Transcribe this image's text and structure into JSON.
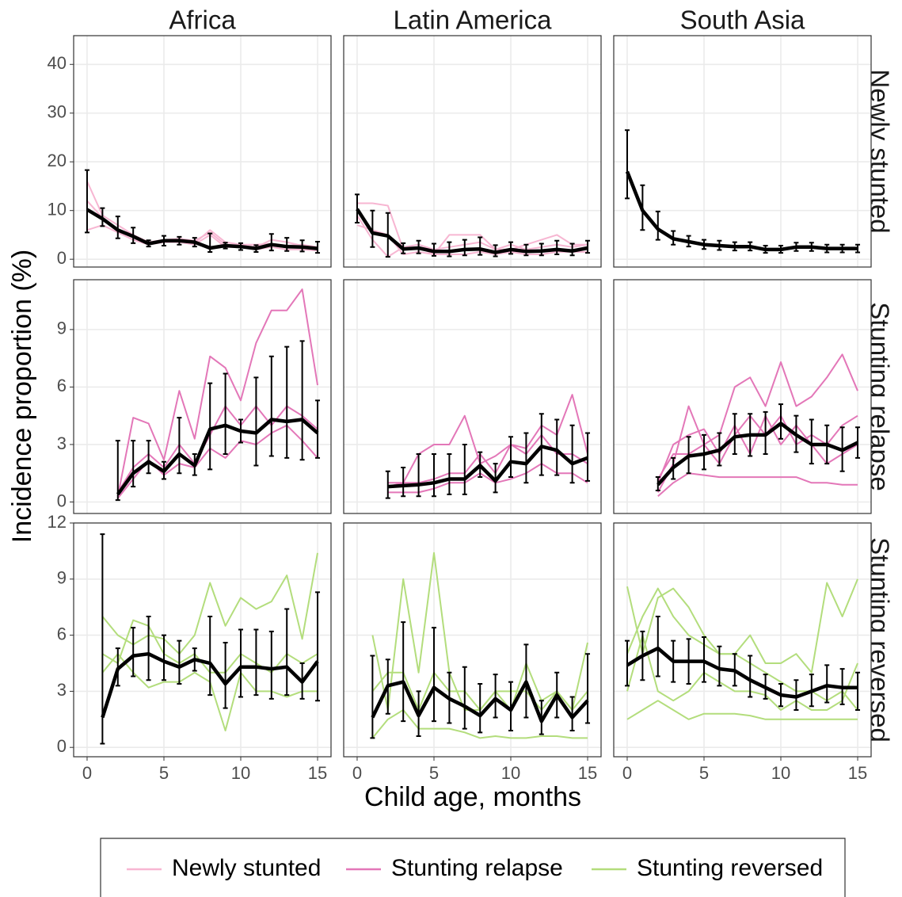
{
  "chart_data": {
    "type": "line",
    "y_label": "Incidence proportion (%)",
    "x_label": "Child age, months",
    "columns": [
      "Africa",
      "Latin America",
      "South Asia"
    ],
    "rows": [
      {
        "label": "Newly stunted",
        "ylim": [
          -1.6,
          45.9
        ],
        "yticks": [
          0,
          10,
          20,
          30,
          40
        ]
      },
      {
        "label": "Stunting relapse",
        "ylim": [
          -0.6,
          11.6
        ],
        "yticks": [
          0,
          3,
          6,
          9
        ]
      },
      {
        "label": "Stunting reversed",
        "ylim": [
          -0.5,
          12
        ],
        "yticks": [
          0,
          3,
          6,
          9,
          12
        ]
      }
    ],
    "xlim": [
      -0.875,
      15.875
    ],
    "xticks": [
      0,
      5,
      10,
      15
    ],
    "grid": true,
    "legend": "bottom",
    "pooled_color": "#000000",
    "series": [
      {
        "name": "Newly stunted",
        "color": "#f7b6d2"
      },
      {
        "name": "Stunting relapse",
        "color": "#e377b8"
      },
      {
        "name": "Stunting reversed",
        "color": "#b3dd7c"
      }
    ],
    "panels": [
      [
        {
          "x": [
            0,
            1,
            2,
            3,
            4,
            5,
            6,
            7,
            8,
            9,
            10,
            11,
            12,
            13,
            14,
            15
          ],
          "values": [
            10.2,
            8.3,
            6,
            4.7,
            3.2,
            3.8,
            3.8,
            3.5,
            2.3,
            2.8,
            2.6,
            2.2,
            3,
            2.6,
            2.5,
            2.2
          ],
          "lower": [
            5.5,
            6.8,
            4.3,
            3.3,
            2.6,
            2.8,
            3,
            2.6,
            1.5,
            2.2,
            1.9,
            1.5,
            1.8,
            1.7,
            1.6,
            1.3
          ],
          "upper": [
            18.3,
            10.5,
            8.8,
            6.5,
            3.9,
            4.8,
            4.6,
            4.4,
            5.3,
            3.4,
            3.3,
            2.9,
            5.2,
            4.4,
            3.9,
            3.6
          ],
          "cohorts": [
            [
              16,
              9,
              7,
              5,
              3.5,
              4,
              4.2,
              3.8,
              5.5,
              3,
              2.8,
              2.5,
              4,
              3.5,
              2.8,
              2.5
            ],
            [
              6,
              7,
              5.5,
              4,
              3,
              3.5,
              3.5,
              3,
              5,
              2.5,
              2.5,
              2,
              2.5,
              2,
              2,
              1.8
            ],
            [
              12,
              8.5,
              6,
              4.5,
              3.2,
              3.6,
              3.8,
              3.3,
              6,
              3.5,
              3,
              3,
              3.2,
              2.8,
              3,
              2.5
            ]
          ]
        },
        {
          "x": [
            0,
            1,
            2,
            3,
            4,
            5,
            6,
            7,
            8,
            9,
            10,
            11,
            12,
            13,
            14,
            15
          ],
          "values": [
            10.3,
            5.4,
            4.8,
            2.1,
            2.3,
            1.6,
            1.6,
            2,
            2.1,
            1.4,
            2,
            1.6,
            1.7,
            2,
            1.7,
            2.3
          ],
          "lower": [
            7.5,
            2.5,
            0.5,
            1.2,
            1.2,
            0.7,
            0.6,
            0.8,
            0.9,
            0.6,
            1.1,
            0.8,
            0.8,
            1,
            0.8,
            1.3
          ],
          "upper": [
            13.3,
            10,
            9.5,
            3.3,
            3.8,
            3.2,
            3.5,
            4,
            4.5,
            2.9,
            3.5,
            3,
            3.2,
            3.8,
            3.2,
            3.8
          ],
          "cohorts": [
            [
              11.5,
              11.5,
              11,
              2,
              2.5,
              1,
              5,
              5,
              5,
              2,
              2,
              3,
              4,
              5,
              3,
              3
            ],
            [
              7,
              6,
              5,
              1,
              1.5,
              1,
              1,
              1,
              1.5,
              1,
              1.5,
              1,
              1,
              1.5,
              1.5,
              1.5
            ],
            [
              9,
              4,
              0.5,
              2.5,
              3,
              2,
              2.5,
              3,
              3.5,
              2,
              3,
              2,
              2.5,
              3,
              2.5,
              3
            ]
          ]
        },
        {
          "x": [
            0,
            1,
            2,
            3,
            4,
            5,
            6,
            7,
            8,
            9,
            10,
            11,
            12,
            13,
            14,
            15
          ],
          "values": [
            18,
            10,
            6.2,
            4.2,
            3.6,
            3,
            2.8,
            2.6,
            2.6,
            2,
            2,
            2.5,
            2.5,
            2.2,
            2.2,
            2.2
          ],
          "lower": [
            12.5,
            6,
            4,
            3,
            2.6,
            2.1,
            1.9,
            1.8,
            1.8,
            1.3,
            1.3,
            1.7,
            1.7,
            1.4,
            1.4,
            1.4
          ],
          "upper": [
            26.5,
            15.2,
            9.8,
            5.8,
            4.8,
            4,
            3.8,
            3.5,
            3.5,
            2.8,
            2.8,
            3.4,
            3.4,
            3,
            3,
            3
          ]
        },
        "cohortsSA"
      ],
      [
        {
          "x": [
            2,
            3,
            4,
            5,
            6,
            7,
            8,
            9,
            10,
            11,
            12,
            13,
            14,
            15
          ],
          "values": [
            0.4,
            1.5,
            2.1,
            1.6,
            2.5,
            1.9,
            3.8,
            4,
            3.7,
            3.6,
            4.3,
            4.2,
            4.3,
            3.6
          ],
          "lower": [
            0.1,
            0.8,
            1.5,
            1.2,
            1.5,
            1.4,
            1.7,
            2.5,
            3.1,
            1.9,
            2.4,
            2.3,
            2.2,
            2.3
          ],
          "upper": [
            3.2,
            3.2,
            3.2,
            2.1,
            4.4,
            2.5,
            6.2,
            6.7,
            4.3,
            6.5,
            7.6,
            8.1,
            8.4,
            5.3
          ],
          "cohorts": [
            [
              0.3,
              4.4,
              4.1,
              2.2,
              5.8,
              3.3,
              7.6,
              7,
              5.3,
              8.3,
              10,
              10,
              11.1,
              6.1
            ],
            [
              0.2,
              1.2,
              2.2,
              1.4,
              2,
              1.8,
              2.8,
              2.3,
              3.2,
              3,
              3.6,
              4,
              3.2,
              2.3
            ],
            [
              0.5,
              1.8,
              2.5,
              1.8,
              3,
              2,
              3.5,
              5,
              4,
              5,
              4,
              5,
              4.5,
              3.8
            ]
          ]
        },
        {
          "x": [
            2,
            3,
            4,
            5,
            6,
            7,
            8,
            9,
            10,
            11,
            12,
            13,
            14,
            15
          ],
          "values": [
            0.8,
            0.85,
            0.9,
            1,
            1.2,
            1.2,
            1.9,
            1.1,
            2.1,
            2,
            2.9,
            2.7,
            2,
            2.3
          ],
          "lower": [
            0.2,
            0.3,
            0.3,
            0.3,
            0.4,
            0.4,
            1.3,
            0.5,
            1.3,
            1,
            1.4,
            1.4,
            1,
            1.1
          ],
          "upper": [
            1.6,
            1.8,
            2.5,
            2.5,
            2.5,
            3,
            2.6,
            2,
            3.4,
            3.6,
            4.6,
            4.3,
            4,
            3.6
          ],
          "cohorts": [
            [
              0.8,
              1,
              2.5,
              3,
              3,
              4.5,
              2,
              2.4,
              3,
              2.8,
              4,
              3.5,
              5.6,
              2.5
            ],
            [
              0.5,
              0.5,
              0.5,
              0.7,
              1,
              1,
              1.5,
              1,
              1.2,
              1.5,
              2,
              1.5,
              1.5,
              1
            ],
            [
              1,
              1,
              1,
              1.2,
              1.5,
              1.5,
              2.5,
              1.5,
              3,
              2.5,
              3.5,
              2.5,
              2.5,
              2
            ]
          ]
        },
        {
          "x": [
            2,
            3,
            4,
            5,
            6,
            7,
            8,
            9,
            10,
            11,
            12,
            13,
            14,
            15
          ],
          "values": [
            0.9,
            1.8,
            2.4,
            2.5,
            2.7,
            3.4,
            3.5,
            3.5,
            4.1,
            3.5,
            3,
            3,
            2.7,
            3.1
          ],
          "lower": [
            0.6,
            1.2,
            1.5,
            1.7,
            1.9,
            2.5,
            2.4,
            2.5,
            3.3,
            2.6,
            2,
            2,
            1.6,
            2.3
          ],
          "upper": [
            1.3,
            2.3,
            3.4,
            3.5,
            3.6,
            4.6,
            4.6,
            4.7,
            5.1,
            4.5,
            4.3,
            4,
            3.9,
            3.9
          ],
          "cohorts": [
            [
              0.5,
              2,
              5,
              3,
              3.5,
              6,
              6.5,
              5,
              7.3,
              5,
              5.5,
              6.5,
              7.7,
              5.8
            ],
            [
              0.3,
              1,
              1.5,
              1.4,
              1.3,
              1.3,
              1.3,
              1.3,
              1.3,
              1.3,
              1,
              1,
              0.9,
              0.9
            ],
            [
              1,
              3,
              3.5,
              3.8,
              2.5,
              4,
              2.5,
              4.5,
              3,
              4,
              3,
              2,
              2.5,
              3
            ],
            [
              1.2,
              2.5,
              2.5,
              3,
              2,
              3.5,
              4.5,
              3.5,
              4.5,
              3,
              3.5,
              3,
              4,
              4.5
            ]
          ]
        }
      ],
      [
        {
          "x": [
            1,
            2,
            3,
            4,
            5,
            6,
            7,
            8,
            9,
            10,
            11,
            12,
            13,
            14,
            15
          ],
          "values": [
            1.6,
            4.2,
            4.9,
            5,
            4.6,
            4.3,
            4.7,
            4.5,
            3.4,
            4.3,
            4.3,
            4.2,
            4.3,
            3.5,
            4.6
          ],
          "lower": [
            0.2,
            3.3,
            3.8,
            3.6,
            3.6,
            3.4,
            4.1,
            2.8,
            2.1,
            2.7,
            2.8,
            2.6,
            2.8,
            2.6,
            2.5
          ],
          "upper": [
            11.4,
            5.3,
            6.4,
            7,
            6,
            5.7,
            5.3,
            7,
            5.6,
            6.3,
            6.3,
            6.2,
            7.4,
            4.5,
            8.3
          ],
          "cohorts": [
            [
              7,
              6,
              5.5,
              6,
              5.8,
              5,
              6,
              8.8,
              6.5,
              8,
              7.4,
              7.8,
              9.2,
              5.8,
              10.4
            ],
            [
              4,
              5,
              4,
              3.2,
              3.5,
              3.5,
              4,
              3.5,
              0.9,
              4,
              3,
              3,
              2.7,
              3,
              3
            ],
            [
              5,
              4.5,
              6.8,
              6.5,
              5,
              4.5,
              5,
              4,
              4,
              5,
              4.5,
              4,
              5,
              4.5,
              5
            ]
          ]
        },
        {
          "x": [
            1,
            2,
            3,
            4,
            5,
            6,
            7,
            8,
            9,
            10,
            11,
            12,
            13,
            14,
            15
          ],
          "values": [
            1.6,
            3.3,
            3.5,
            1.7,
            3.2,
            2.6,
            2.2,
            1.7,
            2.6,
            2,
            3.5,
            1.4,
            2.8,
            1.6,
            2.5
          ],
          "lower": [
            0.5,
            1.8,
            1.4,
            0.6,
            1.4,
            1.3,
            1,
            0.8,
            1.6,
            0.9,
            1.6,
            0.7,
            1.6,
            0.9,
            1.3
          ],
          "upper": [
            4.9,
            4.7,
            6.7,
            3,
            6.4,
            4,
            4.3,
            3.4,
            3.9,
            3.5,
            5.5,
            2.5,
            4,
            2.7,
            5
          ],
          "cohorts": [
            [
              6,
              2,
              9,
              4,
              10.4,
              4,
              2,
              2,
              3,
              2,
              4.5,
              2.5,
              3,
              2,
              5.6
            ],
            [
              0.5,
              1.5,
              2,
              1,
              1,
              1,
              0.8,
              0.5,
              0.6,
              0.5,
              0.5,
              0.6,
              0.6,
              0.5,
              0.5
            ],
            [
              3,
              4,
              4,
              2,
              4,
              3,
              3,
              2,
              3,
              3,
              3,
              2,
              3,
              2,
              3
            ]
          ]
        },
        {
          "x": [
            0,
            1,
            2,
            3,
            4,
            5,
            6,
            7,
            8,
            9,
            10,
            11,
            12,
            13,
            14,
            15
          ],
          "values": [
            4.4,
            4.9,
            5.3,
            4.6,
            4.6,
            4.6,
            4.2,
            4.1,
            3.6,
            3.2,
            2.8,
            2.7,
            3,
            3.3,
            3.2,
            3.2
          ],
          "lower": [
            3.3,
            3.6,
            3.8,
            3.5,
            3.4,
            3.5,
            3.3,
            3.3,
            2.7,
            2.6,
            2.2,
            2,
            2.2,
            2.4,
            2.3,
            2
          ],
          "upper": [
            5.7,
            6.2,
            7,
            5.7,
            5.8,
            5.9,
            5.4,
            5,
            4.9,
            3.9,
            3.4,
            3.6,
            3.9,
            4.4,
            4.2,
            4
          ],
          "cohorts": [
            [
              8.6,
              5,
              8,
              8.5,
              7.5,
              6,
              5,
              5,
              6,
              4.5,
              4.5,
              5,
              4,
              8.8,
              7,
              9
            ],
            [
              1.5,
              2,
              2.5,
              2,
              1.5,
              1.8,
              1.8,
              1.8,
              1.7,
              1.5,
              1.5,
              1.5,
              1.5,
              1.5,
              1.5,
              1.5
            ],
            [
              5,
              7,
              8.5,
              7,
              6,
              5.5,
              5,
              5,
              4.5,
              4,
              3.5,
              3,
              3,
              2.5,
              3,
              2
            ],
            [
              3,
              6,
              3,
              2.5,
              3,
              4,
              3.5,
              3,
              3,
              2.8,
              2,
              2.5,
              2,
              2,
              2.5,
              4.5
            ]
          ]
        }
      ]
    ]
  }
}
